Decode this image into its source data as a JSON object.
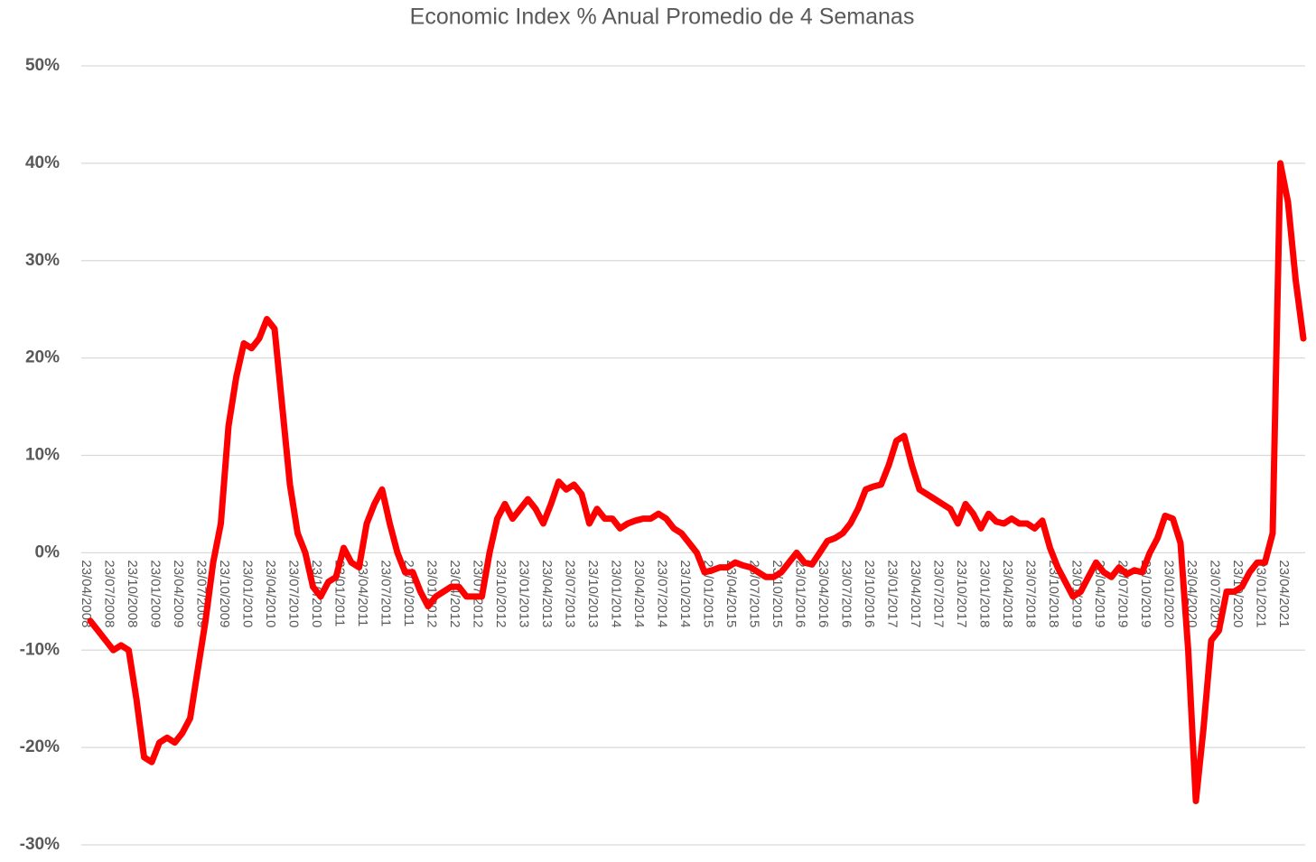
{
  "chart_data": {
    "type": "line",
    "title": "Economic Index % Anual   Promedio de 4 Semanas",
    "categories": [
      "23/04/2008",
      null,
      null,
      "23/07/2008",
      null,
      null,
      "23/10/2008",
      null,
      null,
      "23/01/2009",
      null,
      null,
      "23/04/2009",
      null,
      null,
      "23/07/2009",
      null,
      null,
      "23/10/2009",
      null,
      null,
      "23/01/2010",
      null,
      null,
      "23/04/2010",
      null,
      null,
      "23/07/2010",
      null,
      null,
      "23/10/2010",
      null,
      null,
      "23/01/2011",
      null,
      null,
      "23/04/2011",
      null,
      null,
      "23/07/2011",
      null,
      null,
      "23/10/2011",
      null,
      null,
      "23/01/2012",
      null,
      null,
      "23/04/2012",
      null,
      null,
      "23/07/2012",
      null,
      null,
      "23/10/2012",
      null,
      null,
      "23/01/2013",
      null,
      null,
      "23/04/2013",
      null,
      null,
      "23/07/2013",
      null,
      null,
      "23/10/2013",
      null,
      null,
      "23/01/2014",
      null,
      null,
      "23/04/2014",
      null,
      null,
      "23/07/2014",
      null,
      null,
      "23/10/2014",
      null,
      null,
      "23/01/2015",
      null,
      null,
      "23/04/2015",
      null,
      null,
      "23/07/2015",
      null,
      null,
      "23/10/2015",
      null,
      null,
      "23/01/2016",
      null,
      null,
      "23/04/2016",
      null,
      null,
      "23/07/2016",
      null,
      null,
      "23/10/2016",
      null,
      null,
      "23/01/2017",
      null,
      null,
      "23/04/2017",
      null,
      null,
      "23/07/2017",
      null,
      null,
      "23/10/2017",
      null,
      null,
      "23/01/2018",
      null,
      null,
      "23/04/2018",
      null,
      null,
      "23/07/2018",
      null,
      null,
      "23/10/2018",
      null,
      null,
      "23/01/2019",
      null,
      null,
      "23/04/2019",
      null,
      null,
      "23/07/2019",
      null,
      null,
      "23/10/2019",
      null,
      null,
      "23/01/2020",
      null,
      null,
      "23/04/2020",
      null,
      null,
      "23/07/2020",
      null,
      null,
      "23/10/2020",
      null,
      null,
      "23/01/2021",
      null,
      null,
      "23/04/2021",
      null,
      null
    ],
    "series": [
      {
        "name": "Economic Index",
        "color": "#ff0000",
        "values": [
          -7,
          -8,
          -9,
          -10,
          -9.5,
          -10,
          -15,
          -21,
          -21.5,
          -19.5,
          -19,
          -19.5,
          -18.5,
          -17,
          -12,
          -7,
          -1,
          3,
          13,
          18,
          21.5,
          21,
          22,
          24,
          23,
          15,
          7,
          2,
          0,
          -3.5,
          -4.5,
          -3,
          -2.5,
          0.5,
          -1,
          -1.5,
          3,
          5,
          6.5,
          3,
          0,
          -2,
          -2,
          -4,
          -5.5,
          -4.5,
          -4,
          -3.5,
          -3.5,
          -4.5,
          -4.5,
          -4.5,
          0,
          3.5,
          5,
          3.5,
          4.5,
          5.5,
          4.5,
          3,
          5,
          7.3,
          6.5,
          7,
          6,
          3,
          4.5,
          3.5,
          3.5,
          2.5,
          3,
          3.3,
          3.5,
          3.5,
          4,
          3.5,
          2.5,
          2,
          1,
          0,
          -2,
          -1.8,
          -1.5,
          -1.5,
          -1,
          -1.3,
          -1.5,
          -2,
          -2.5,
          -2.5,
          -2,
          -1,
          0,
          -1,
          -1.2,
          0,
          1.2,
          1.5,
          2,
          3,
          4.5,
          6.5,
          6.8,
          7,
          9,
          11.5,
          12,
          9,
          6.5,
          6,
          5.5,
          5,
          4.5,
          3,
          5,
          4,
          2.5,
          4,
          3.2,
          3,
          3.5,
          3,
          3,
          2.5,
          3.3,
          0.5,
          -1.5,
          -3,
          -4.5,
          -4,
          -2.5,
          -1,
          -2,
          -2.5,
          -1.5,
          -2.2,
          -1.8,
          -2,
          0,
          1.5,
          3.8,
          3.5,
          1,
          -10,
          -25.5,
          -18,
          -9,
          -8,
          -4,
          -4,
          -3.5,
          -2,
          -1,
          -1,
          2,
          40,
          36,
          28,
          22
        ]
      }
    ],
    "ylim": [
      -30,
      50
    ],
    "yticks": [
      {
        "value": -30,
        "label": "-30%"
      },
      {
        "value": -20,
        "label": "-20%"
      },
      {
        "value": -10,
        "label": "-10%"
      },
      {
        "value": 0,
        "label": "0%"
      },
      {
        "value": 10,
        "label": "10%"
      },
      {
        "value": 20,
        "label": "20%"
      },
      {
        "value": 30,
        "label": "30%"
      },
      {
        "value": 40,
        "label": "40%"
      },
      {
        "value": 50,
        "label": "50%"
      }
    ],
    "grid": true
  }
}
